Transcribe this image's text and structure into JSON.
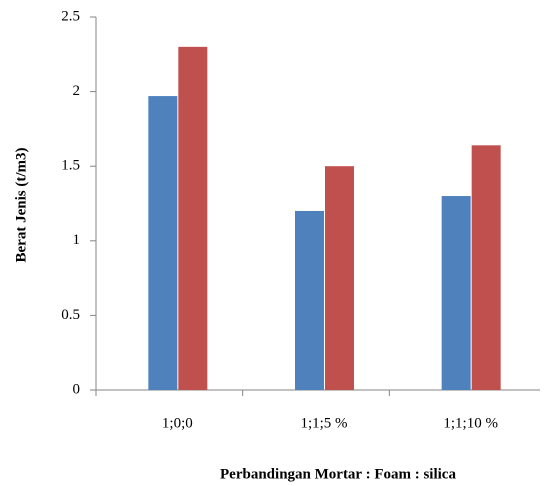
{
  "chart_data": {
    "type": "bar",
    "y_label": "Berat Jenis (t/m3)",
    "x_label": "Perbandingan Mortar : Foam : silica",
    "categories": [
      "1;0;0",
      "1;1;5 %",
      "1;1;10 %"
    ],
    "series": [
      {
        "color": "#4f81bd",
        "values": [
          1.97,
          1.2,
          1.3
        ]
      },
      {
        "color": "#c0504d",
        "values": [
          2.3,
          1.5,
          1.64
        ]
      }
    ],
    "ylim": [
      0,
      2.5
    ],
    "yticks": [
      0,
      0.5,
      1,
      1.5,
      2,
      2.5
    ],
    "grid": false
  }
}
